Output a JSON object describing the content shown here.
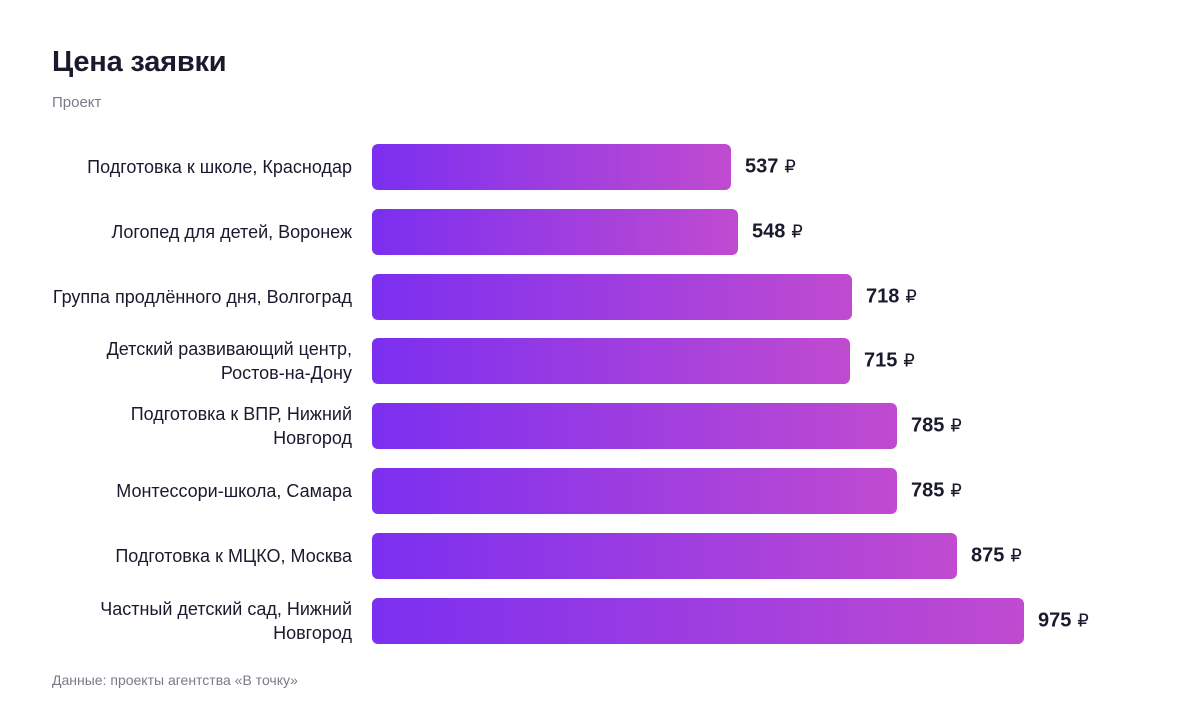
{
  "header": {
    "title": "Цена заявки",
    "subtitle": "Проект"
  },
  "footer": {
    "source": "Данные: проекты агентства «В точку»"
  },
  "chart_data": {
    "type": "bar",
    "orientation": "horizontal",
    "title": "Цена заявки",
    "subtitle": "Проект",
    "unit": "₽",
    "categories": [
      "Подготовка к школе, Краснодар",
      "Логопед для детей, Воронеж",
      "Группа продлённого дня, Волгоград",
      "Детский развивающий центр, Ростов-на-Дону",
      "Подготовка к ВПР, Нижний Новгород",
      "Монтессори-школа, Самара",
      "Подготовка к МЦКО, Москва",
      "Частный детский сад, Нижний Новгород"
    ],
    "values": [
      537,
      548,
      718,
      715,
      785,
      785,
      875,
      975
    ],
    "xlim": [
      0,
      975
    ],
    "grid": false,
    "colors": {
      "bar_start": "#7b2ff0",
      "bar_end": "#c04bd0",
      "text": "#1a1a2e",
      "muted": "#7a7a88"
    }
  }
}
